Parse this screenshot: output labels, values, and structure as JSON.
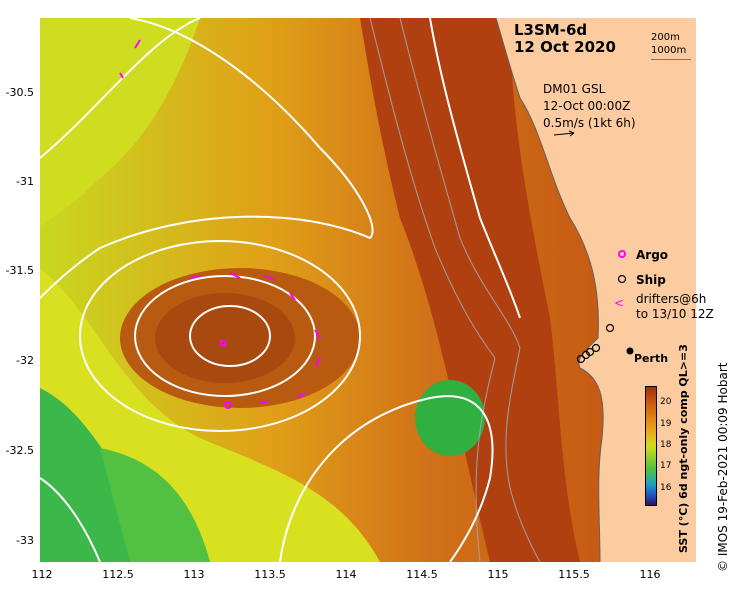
{
  "title": {
    "product": "L3SM-6d",
    "date": "12 Oct 2020"
  },
  "depth_contours": [
    "200m",
    "1000m"
  ],
  "current_info": {
    "line1": "DM01 GSL",
    "line2": "12-Oct 00:00Z",
    "line3": "0.5m/s (1kt 6h)"
  },
  "legend": {
    "argo": "Argo",
    "ship": "Ship",
    "drifters_line1": "drifters@6h",
    "drifters_line2": "to 13/10 12Z"
  },
  "city": "Perth",
  "colorbar": {
    "label": "SST (°C) 6d ngt-only comp QL>=3",
    "ticks": [
      "20",
      "19",
      "18",
      "17",
      "16"
    ]
  },
  "credit": "© IMOS 19-Feb-2021 00:09 Hobart",
  "axes": {
    "y_ticks": [
      "-30.5",
      "-31",
      "-31.5",
      "-32",
      "-32.5",
      "-33"
    ],
    "x_ticks": [
      "112",
      "112.5",
      "113",
      "113.5",
      "114",
      "114.5",
      "115",
      "115.5",
      "116"
    ]
  },
  "colors": {
    "land": "#fccca0",
    "warm_water": "#b84e10",
    "cool_water": "#3cb84a",
    "argo": "#ff00ff",
    "contour": "#ffffff"
  }
}
